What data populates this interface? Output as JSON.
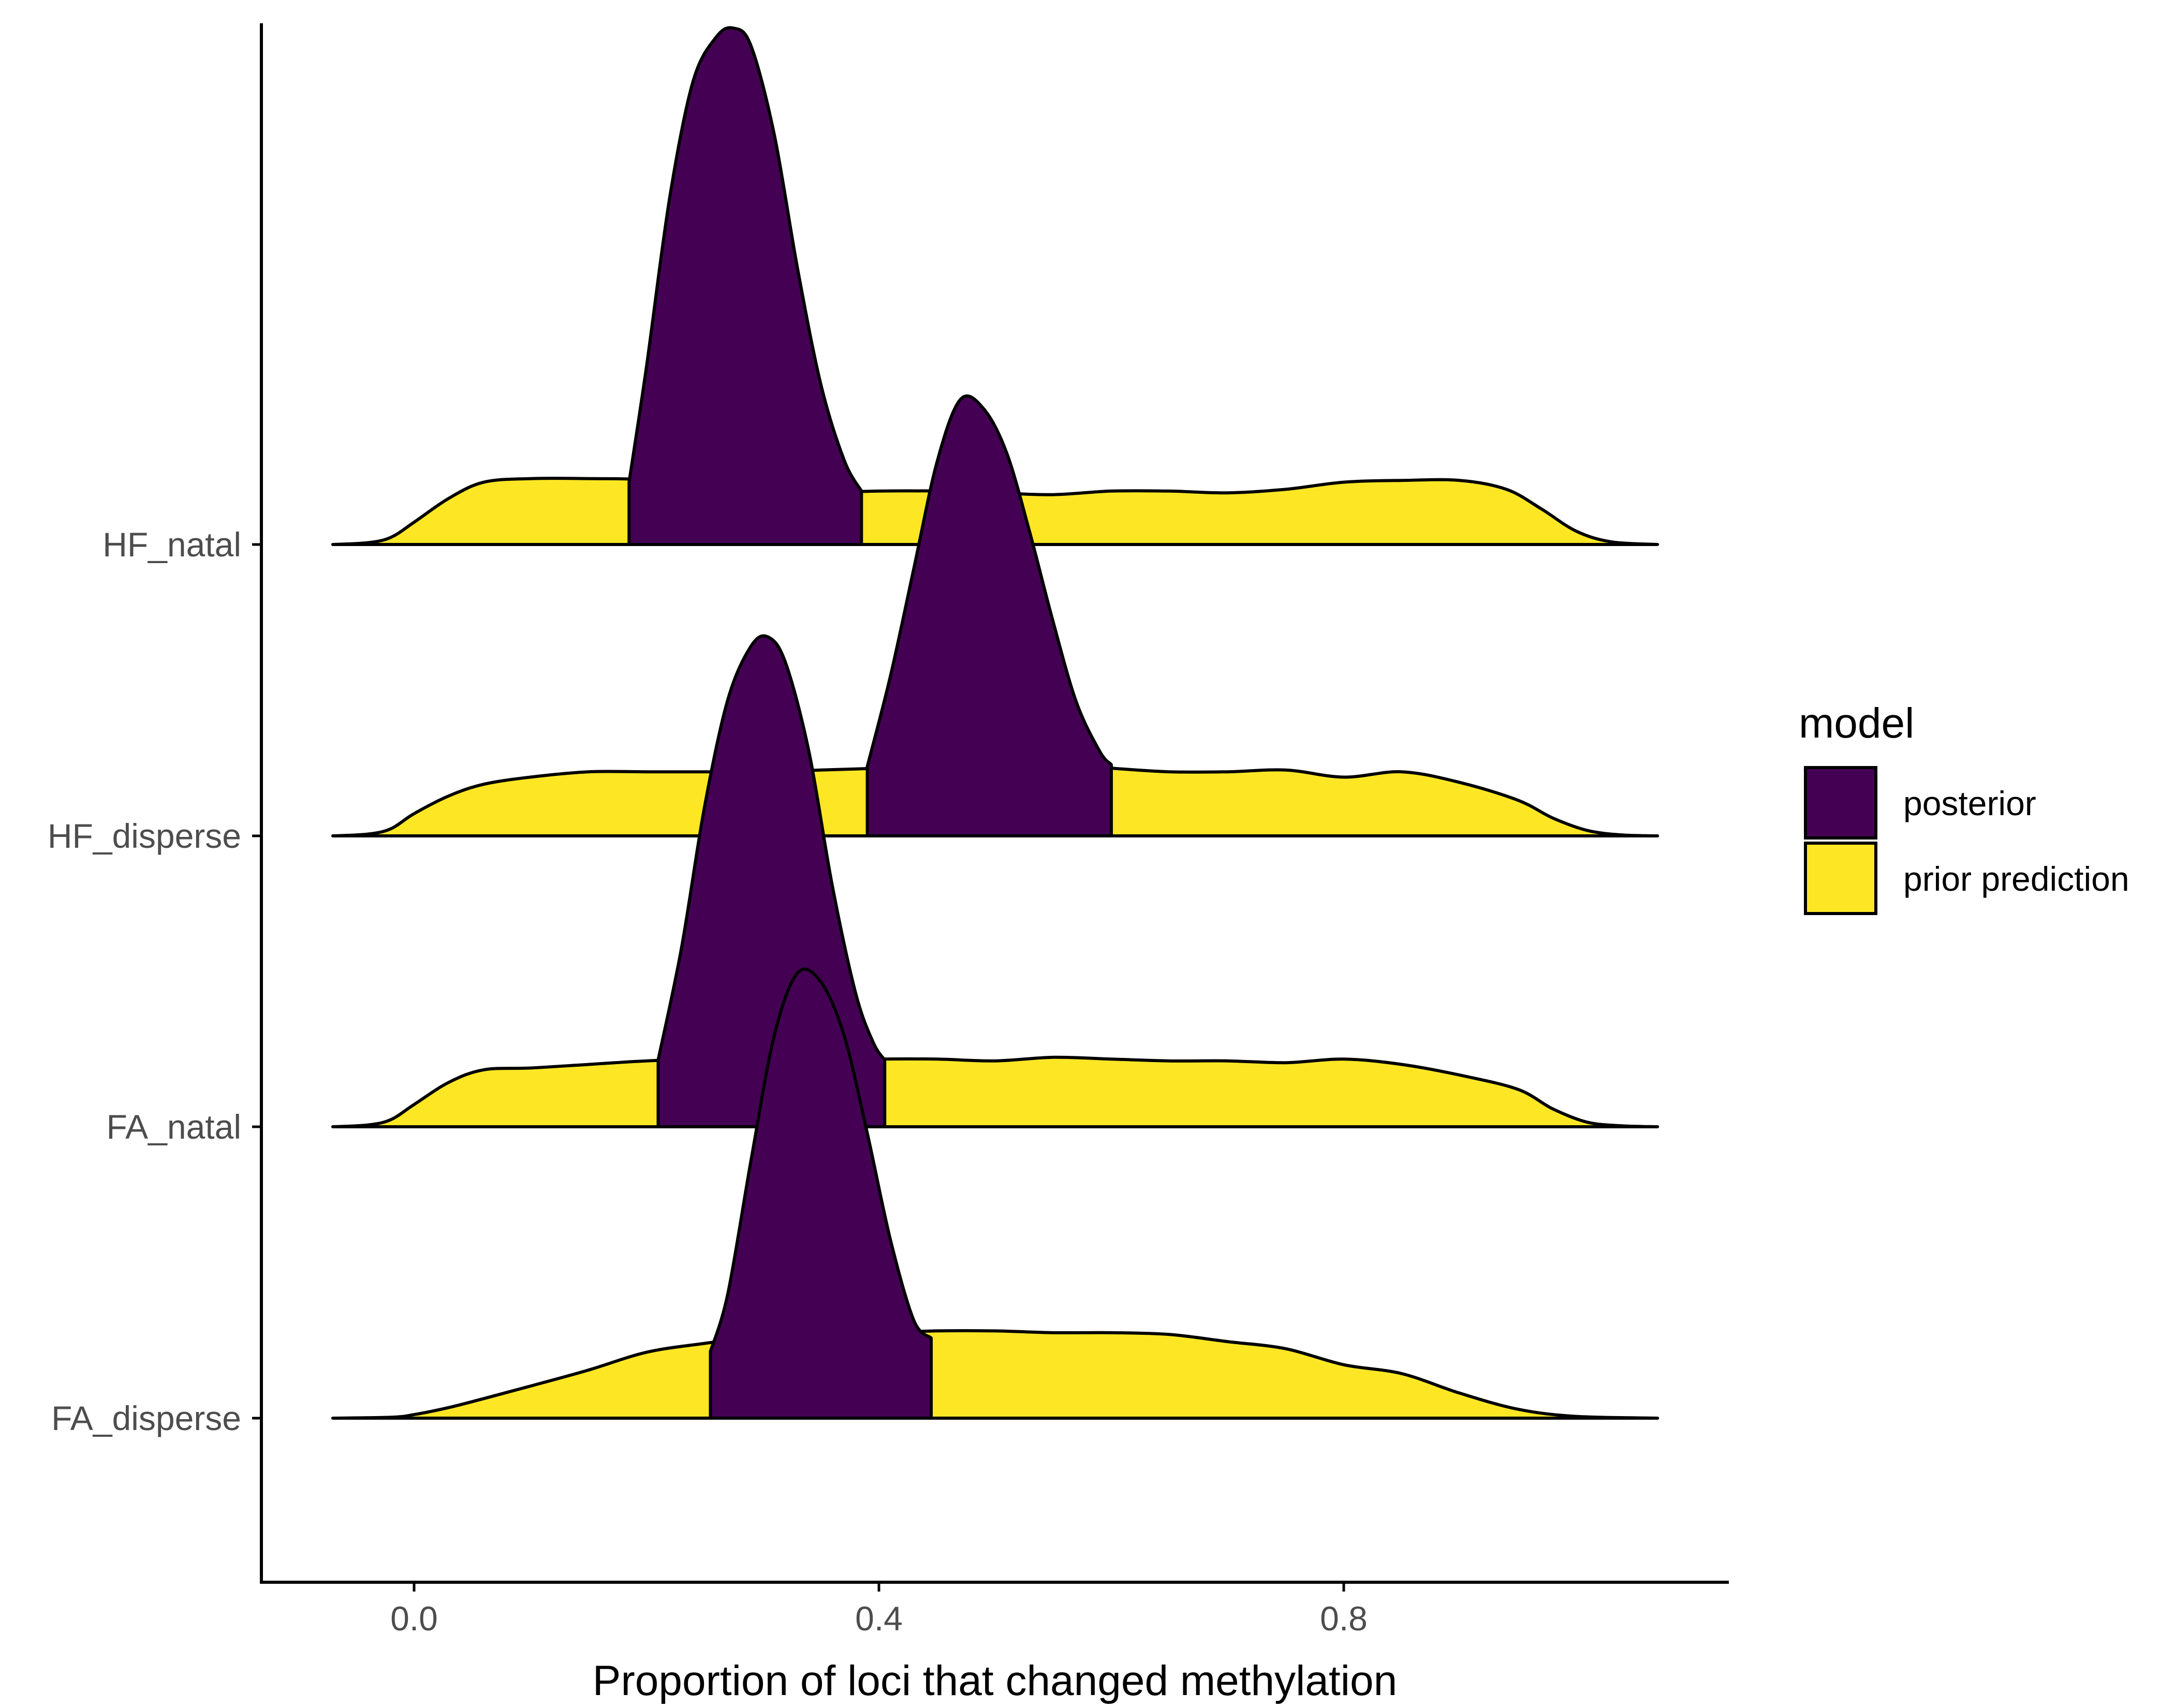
{
  "chart_data": {
    "type": "ridgeline",
    "title": "",
    "xlabel": "Proportion of loci that changed methylation",
    "ylabel": "",
    "xlim": [
      -0.066,
      1.066
    ],
    "x_ticks": [
      0.0,
      0.4,
      0.8
    ],
    "x_tick_labels": [
      "0.0",
      "0.4",
      "0.8"
    ],
    "categories": [
      "HF_natal",
      "HF_disperse",
      "FA_natal",
      "FA_disperse"
    ],
    "legend": {
      "title": "model",
      "position": "right",
      "entries": [
        {
          "label": "posterior",
          "color": "#440154"
        },
        {
          "label": "prior prediction",
          "color": "#FDE725"
        }
      ]
    },
    "grid": false,
    "series": [
      {
        "category": "HF_natal",
        "prior_prediction": {
          "x": [
            -0.07,
            -0.04,
            -0.02,
            0.0,
            0.03,
            0.06,
            0.1,
            0.15,
            0.2,
            0.25,
            0.3,
            0.35,
            0.4,
            0.45,
            0.5,
            0.55,
            0.6,
            0.65,
            0.7,
            0.75,
            0.8,
            0.85,
            0.9,
            0.94,
            0.97,
            1.0,
            1.03,
            1.07
          ],
          "y": [
            0.0,
            0.02,
            0.08,
            0.25,
            0.52,
            0.7,
            0.74,
            0.74,
            0.72,
            0.58,
            0.56,
            0.58,
            0.6,
            0.6,
            0.58,
            0.56,
            0.6,
            0.6,
            0.58,
            0.62,
            0.7,
            0.72,
            0.72,
            0.62,
            0.4,
            0.15,
            0.03,
            0.0
          ]
        },
        "posterior": {
          "x": [
            0.185,
            0.2,
            0.22,
            0.24,
            0.26,
            0.275,
            0.29,
            0.31,
            0.33,
            0.35,
            0.37,
            0.385
          ],
          "y": [
            0.7,
            2.0,
            3.9,
            5.2,
            5.7,
            5.8,
            5.6,
            4.6,
            3.1,
            1.8,
            0.95,
            0.6
          ]
        }
      },
      {
        "category": "HF_disperse",
        "prior_prediction": {
          "x": [
            -0.07,
            -0.04,
            -0.02,
            0.0,
            0.03,
            0.06,
            0.1,
            0.15,
            0.2,
            0.25,
            0.3,
            0.35,
            0.4,
            0.45,
            0.5,
            0.55,
            0.6,
            0.65,
            0.7,
            0.75,
            0.8,
            0.85,
            0.9,
            0.95,
            0.98,
            1.01,
            1.04,
            1.07
          ],
          "y": [
            0.0,
            0.02,
            0.08,
            0.25,
            0.45,
            0.58,
            0.66,
            0.72,
            0.72,
            0.72,
            0.72,
            0.74,
            0.76,
            0.78,
            0.82,
            0.8,
            0.76,
            0.72,
            0.72,
            0.74,
            0.66,
            0.72,
            0.6,
            0.4,
            0.2,
            0.06,
            0.01,
            0.0
          ]
        },
        "posterior": {
          "x": [
            0.39,
            0.41,
            0.43,
            0.45,
            0.47,
            0.49,
            0.51,
            0.53,
            0.55,
            0.57,
            0.59,
            0.6
          ],
          "y": [
            0.78,
            1.8,
            3.0,
            4.2,
            4.9,
            4.8,
            4.3,
            3.4,
            2.4,
            1.5,
            0.95,
            0.8
          ]
        }
      },
      {
        "category": "FA_natal",
        "prior_prediction": {
          "x": [
            -0.07,
            -0.04,
            -0.02,
            0.0,
            0.03,
            0.06,
            0.1,
            0.15,
            0.2,
            0.25,
            0.3,
            0.35,
            0.4,
            0.45,
            0.5,
            0.55,
            0.6,
            0.65,
            0.7,
            0.75,
            0.8,
            0.85,
            0.9,
            0.95,
            0.98,
            1.01,
            1.04,
            1.07
          ],
          "y": [
            0.0,
            0.02,
            0.08,
            0.25,
            0.5,
            0.64,
            0.66,
            0.7,
            0.74,
            0.76,
            0.76,
            0.74,
            0.76,
            0.76,
            0.74,
            0.78,
            0.76,
            0.74,
            0.74,
            0.72,
            0.76,
            0.7,
            0.58,
            0.42,
            0.2,
            0.05,
            0.01,
            0.0
          ]
        },
        "posterior": {
          "x": [
            0.21,
            0.23,
            0.25,
            0.27,
            0.29,
            0.305,
            0.32,
            0.34,
            0.36,
            0.38,
            0.395,
            0.405
          ],
          "y": [
            0.75,
            2.0,
            3.6,
            4.8,
            5.4,
            5.5,
            5.2,
            4.2,
            2.7,
            1.5,
            0.95,
            0.75
          ]
        }
      },
      {
        "category": "FA_disperse",
        "prior_prediction": {
          "x": [
            -0.07,
            -0.02,
            0.0,
            0.03,
            0.06,
            0.1,
            0.15,
            0.2,
            0.25,
            0.3,
            0.35,
            0.4,
            0.45,
            0.5,
            0.55,
            0.6,
            0.65,
            0.7,
            0.75,
            0.8,
            0.85,
            0.9,
            0.95,
            1.0,
            1.07
          ],
          "y": [
            0.0,
            0.01,
            0.04,
            0.12,
            0.22,
            0.36,
            0.54,
            0.74,
            0.84,
            0.92,
            0.98,
            0.96,
            0.98,
            0.98,
            0.96,
            0.96,
            0.94,
            0.86,
            0.78,
            0.6,
            0.5,
            0.28,
            0.1,
            0.02,
            0.0
          ]
        },
        "posterior": {
          "x": [
            0.255,
            0.27,
            0.29,
            0.31,
            0.33,
            0.35,
            0.37,
            0.39,
            0.41,
            0.43,
            0.445
          ],
          "y": [
            0.75,
            1.4,
            2.9,
            4.3,
            5.0,
            4.9,
            4.3,
            3.2,
            2.0,
            1.1,
            0.9
          ]
        }
      }
    ]
  }
}
